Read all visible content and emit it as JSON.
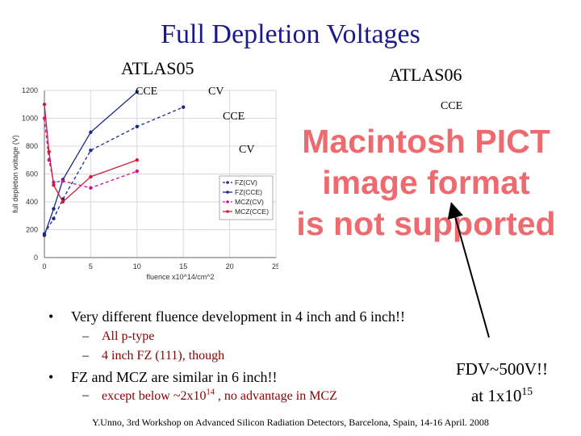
{
  "slide": {
    "title": "Full Depletion Voltages",
    "label_atlas05": "ATLAS05",
    "label_atlas06": "ATLAS06",
    "anno_cce_1": "CCE",
    "anno_cv_1": "CV",
    "anno_cce_2": "CCE",
    "anno_cv_2": "CV",
    "anno_cce_right": "CCE",
    "pict_text": [
      "Macintosh PICT",
      "image format",
      "is not supported"
    ],
    "bullet1": "Very different fluence development in 4 inch and 6 inch!!",
    "sub1": "All p-type",
    "sub2": "4 inch FZ (111), though",
    "bullet2": "FZ and MCZ are similar in 6 inch!!",
    "sub3_pre": "except below ~2x10",
    "sub3_sup": "14",
    "sub3_post": " , no advantage in MCZ",
    "fdv_line1": "FDV~500V!!",
    "fdv_line2_pre": "at 1x10",
    "fdv_line2_sup": "15",
    "footer": "Y.Unno, 3rd Workshop on Advanced Silicon Radiation Detectors, Barcelona, Spain, 14-16 April. 2008",
    "colors": {
      "title": "#1a1a8c",
      "pict": "#ee6a6e",
      "sub_text": "#8b0000"
    }
  },
  "chart_data": {
    "type": "line",
    "xlabel": "fluence x10^14/cm^2",
    "ylabel": "full depletion voltage (V)",
    "xlim": [
      0,
      25
    ],
    "ylim": [
      0,
      1200
    ],
    "x_ticks": [
      0,
      5,
      10,
      15,
      20,
      25
    ],
    "y_ticks": [
      0,
      200,
      400,
      600,
      800,
      1000,
      1200
    ],
    "legend_position": "right",
    "series": [
      {
        "name": "FZ(CV)",
        "color": "#1a2a8a",
        "dash": "dashed",
        "marker": "circle",
        "x": [
          0,
          1,
          2,
          5,
          10,
          15
        ],
        "y": [
          170,
          280,
          420,
          770,
          940,
          1080
        ]
      },
      {
        "name": "FZ(CCE)",
        "color": "#1a2a8a",
        "dash": "solid",
        "marker": "circle",
        "x": [
          0,
          1,
          2,
          5,
          10
        ],
        "y": [
          160,
          350,
          560,
          900,
          1190
        ]
      },
      {
        "name": "MCZ(CV)",
        "color": "#d10ea0",
        "dash": "dashed",
        "marker": "circle",
        "x": [
          0,
          0.5,
          1,
          2,
          5,
          10
        ],
        "y": [
          1000,
          700,
          540,
          550,
          500,
          620
        ]
      },
      {
        "name": "MCZ(CCE)",
        "color": "#d11a3a",
        "dash": "solid",
        "marker": "circle",
        "x": [
          0,
          0.5,
          1,
          2,
          5,
          10
        ],
        "y": [
          1100,
          760,
          520,
          400,
          580,
          700
        ]
      }
    ]
  }
}
